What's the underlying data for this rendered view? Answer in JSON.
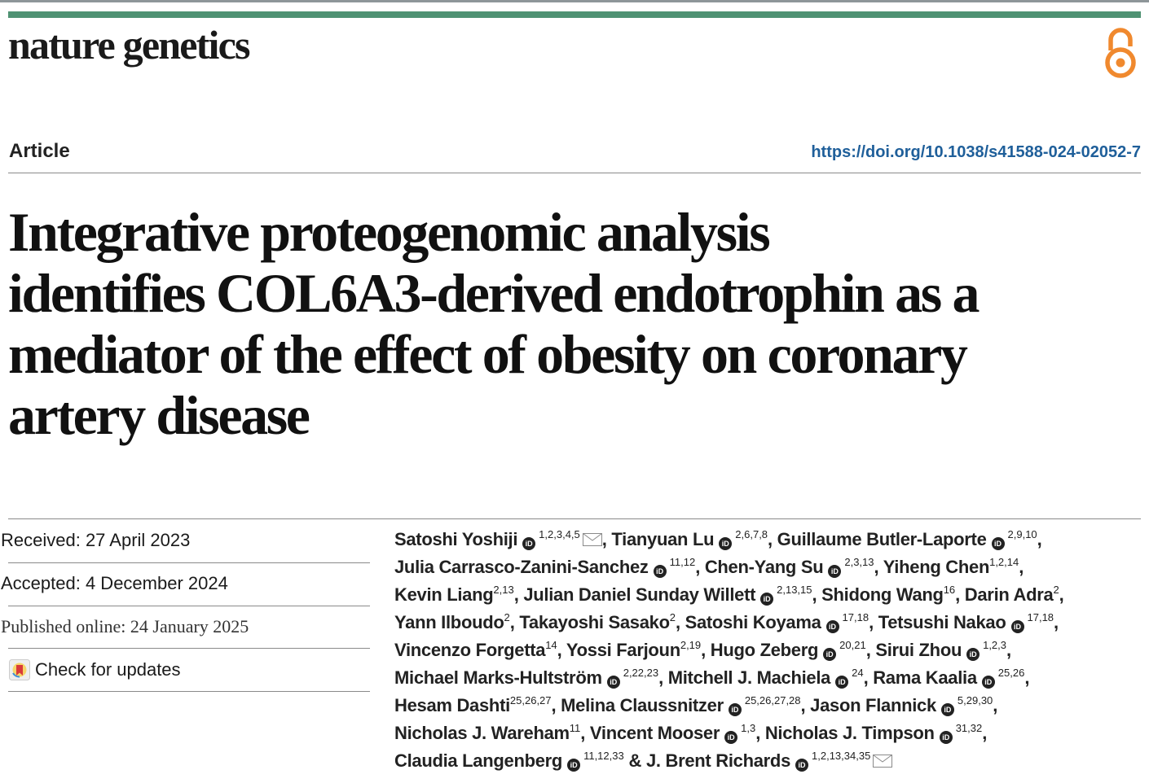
{
  "header": {
    "journal_name": "nature genetics",
    "open_access_icon": "open-access-icon",
    "article_type": "Article",
    "doi": "https://doi.org/10.1038/s41588-024-02052-7"
  },
  "title_lines": [
    "Integrative proteogenomic analysis",
    "identifies COL6A3-derived endotrophin as a",
    "mediator of the effect of obesity on coronary",
    "artery disease"
  ],
  "dates": {
    "received": "Received: 27 April 2023",
    "accepted": "Accepted: 4 December 2024",
    "published": "Published online: 24 January 2025",
    "check_updates": "Check for updates"
  },
  "orcid_glyph": "iD",
  "separators": {
    "comma": ", ",
    "and": " & "
  },
  "authors": [
    {
      "name": "Satoshi Yoshiji",
      "orcid": true,
      "sup": "1,2,3,4,5",
      "mail": true
    },
    {
      "name": "Tianyuan Lu",
      "orcid": true,
      "sup": "2,6,7,8"
    },
    {
      "name": "Guillaume Butler-Laporte",
      "orcid": true,
      "sup": "2,9,10"
    },
    {
      "name": "Julia Carrasco-Zanini-Sanchez",
      "orcid": true,
      "sup": "11,12"
    },
    {
      "name": "Chen-Yang Su",
      "orcid": true,
      "sup": "2,3,13"
    },
    {
      "name": "Yiheng Chen",
      "orcid": false,
      "sup": "1,2,14"
    },
    {
      "name": "Kevin Liang",
      "orcid": false,
      "sup": "2,13"
    },
    {
      "name": "Julian Daniel Sunday Willett",
      "orcid": true,
      "sup": "2,13,15"
    },
    {
      "name": "Shidong Wang",
      "orcid": false,
      "sup": "16"
    },
    {
      "name": "Darin Adra",
      "orcid": false,
      "sup": "2"
    },
    {
      "name": "Yann Ilboudo",
      "orcid": false,
      "sup": "2"
    },
    {
      "name": "Takayoshi Sasako",
      "orcid": false,
      "sup": "2"
    },
    {
      "name": "Satoshi Koyama",
      "orcid": true,
      "sup": "17,18"
    },
    {
      "name": "Tetsushi Nakao",
      "orcid": true,
      "sup": "17,18"
    },
    {
      "name": "Vincenzo Forgetta",
      "orcid": false,
      "sup": "14"
    },
    {
      "name": "Yossi Farjoun",
      "orcid": false,
      "sup": "2,19"
    },
    {
      "name": "Hugo Zeberg",
      "orcid": true,
      "sup": "20,21"
    },
    {
      "name": "Sirui Zhou",
      "orcid": true,
      "sup": "1,2,3"
    },
    {
      "name": "Michael Marks-Hultström",
      "orcid": true,
      "sup": "2,22,23"
    },
    {
      "name": "Mitchell J. Machiela",
      "orcid": true,
      "sup": "24"
    },
    {
      "name": "Rama Kaalia",
      "orcid": true,
      "sup": "25,26"
    },
    {
      "name": "Hesam Dashti",
      "orcid": false,
      "sup": "25,26,27"
    },
    {
      "name": "Melina Claussnitzer",
      "orcid": true,
      "sup": "25,26,27,28"
    },
    {
      "name": "Jason Flannick",
      "orcid": true,
      "sup": "5,29,30"
    },
    {
      "name": "Nicholas J. Wareham",
      "orcid": false,
      "sup": "11"
    },
    {
      "name": "Vincent Mooser",
      "orcid": true,
      "sup": "1,3"
    },
    {
      "name": "Nicholas J. Timpson",
      "orcid": true,
      "sup": "31,32"
    },
    {
      "name": "Claudia Langenberg",
      "orcid": true,
      "sup": "11,12,33"
    },
    {
      "name": "J. Brent Richards",
      "orcid": true,
      "sup": "1,2,13,34,35",
      "mail": true
    }
  ],
  "author_line_breaks": [
    3,
    6,
    10,
    14,
    18,
    21,
    24,
    27
  ]
}
